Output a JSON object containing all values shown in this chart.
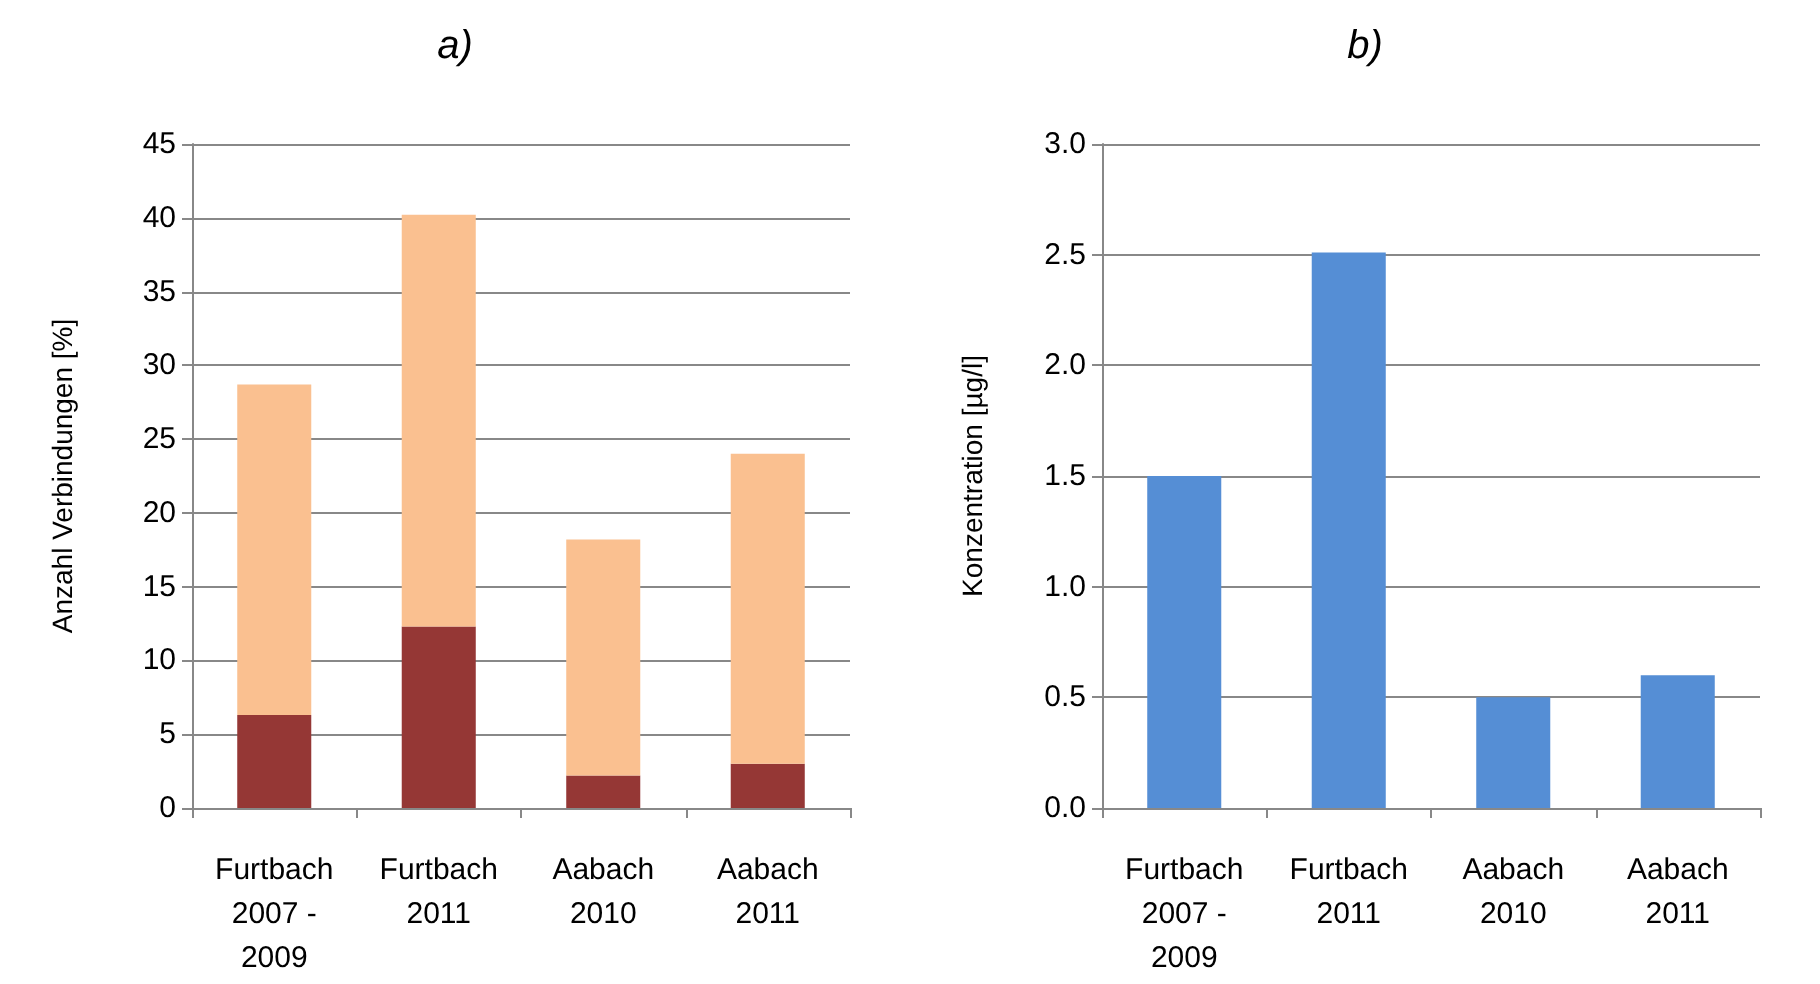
{
  "chart_data": [
    {
      "type": "bar",
      "title": "a)",
      "ylabel": "Anzahl Verbindungen [%]",
      "categories": [
        "Furtbach\n2007 -\n2009",
        "Furtbach\n2011",
        "Aabach\n2010",
        "Aabach\n2011"
      ],
      "stacked": true,
      "series": [
        {
          "color": "#953735",
          "values": [
            6.3,
            12.3,
            2.2,
            3.0
          ]
        },
        {
          "color": "#fac090",
          "values": [
            22.4,
            27.9,
            16.0,
            21.0
          ]
        }
      ],
      "ylim": [
        0,
        45
      ],
      "yticks": [
        0,
        5,
        10,
        15,
        20,
        25,
        30,
        35,
        40,
        45
      ],
      "grid": "y"
    },
    {
      "type": "bar",
      "title": "b)",
      "ylabel": "Konzentration [µg/l]",
      "categories": [
        "Furtbach\n2007 -\n2009",
        "Furtbach\n2011",
        "Aabach\n2010",
        "Aabach\n2011"
      ],
      "series": [
        {
          "color": "#558ed5",
          "values": [
            1.5,
            2.51,
            0.5,
            0.6
          ]
        }
      ],
      "ylim": [
        0,
        3
      ],
      "yticks": [
        {
          "value": 0,
          "label": "0.0"
        },
        {
          "value": 0.5,
          "label": "0.5"
        },
        {
          "value": 1,
          "label": "1.0"
        },
        {
          "value": 1.5,
          "label": "1.5"
        },
        {
          "value": 2,
          "label": "2.0"
        },
        {
          "value": 2.5,
          "label": "2.5"
        },
        {
          "value": 3,
          "label": "3.0"
        }
      ],
      "grid": "y"
    }
  ]
}
